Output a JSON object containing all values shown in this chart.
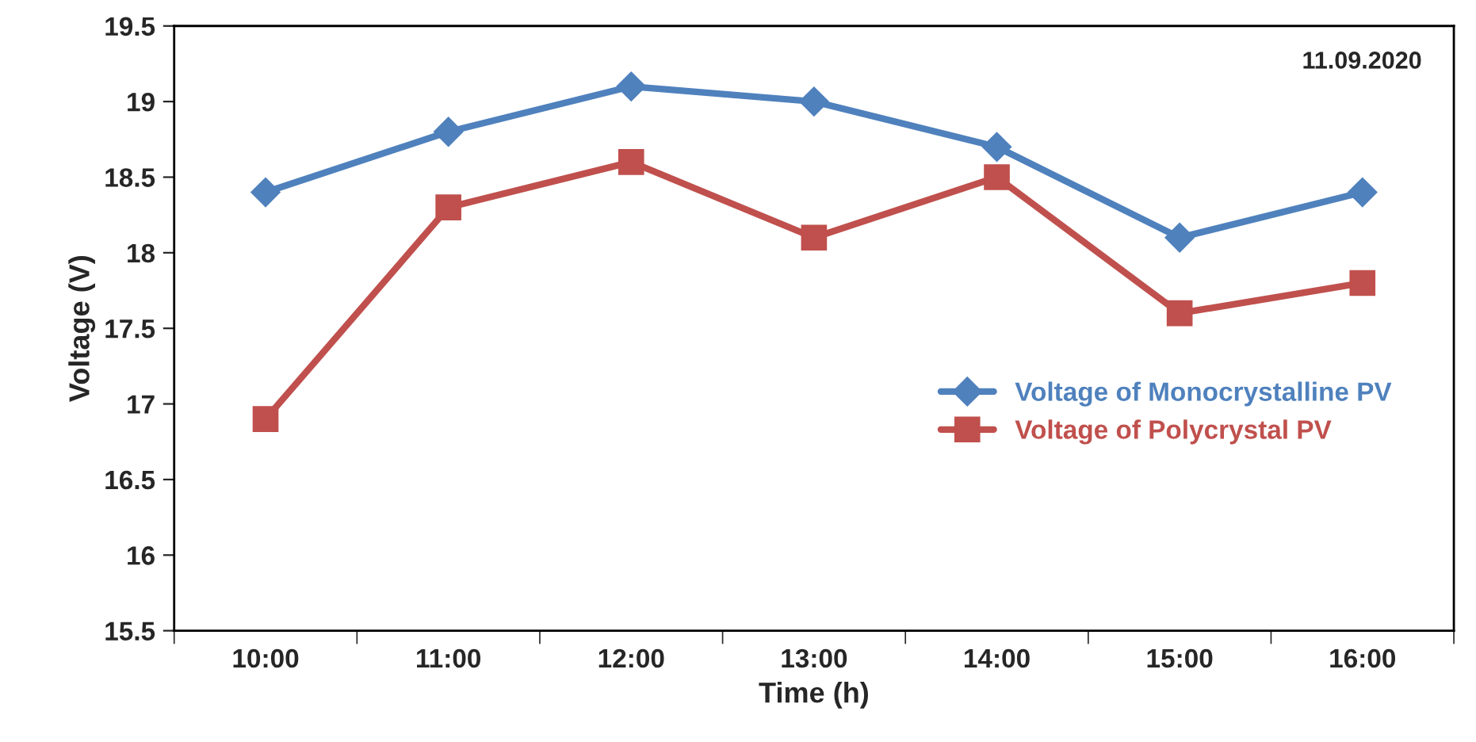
{
  "chart_data": {
    "type": "line",
    "xlabel": "Time (h)",
    "ylabel": "Voltage (V)",
    "categories": [
      "10:00",
      "11:00",
      "12:00",
      "13:00",
      "14:00",
      "15:00",
      "16:00"
    ],
    "series": [
      {
        "name": "Voltage of Monocrystalline PV",
        "color": "#4f81bd",
        "marker": "diamond",
        "values": [
          18.4,
          18.8,
          19.1,
          19.0,
          18.7,
          18.1,
          18.4
        ]
      },
      {
        "name": "Voltage of Polycrystal PV",
        "color": "#c0504d",
        "marker": "square",
        "values": [
          16.9,
          18.3,
          18.6,
          18.1,
          18.5,
          17.6,
          17.8
        ]
      }
    ],
    "ylim": [
      15.5,
      19.5
    ],
    "yticks": [
      15.5,
      16,
      16.5,
      17,
      17.5,
      18,
      18.5,
      19,
      19.5
    ],
    "annotations": [
      "11.09.2020"
    ],
    "grid": false,
    "legend": "right",
    "line_style": "solid"
  }
}
